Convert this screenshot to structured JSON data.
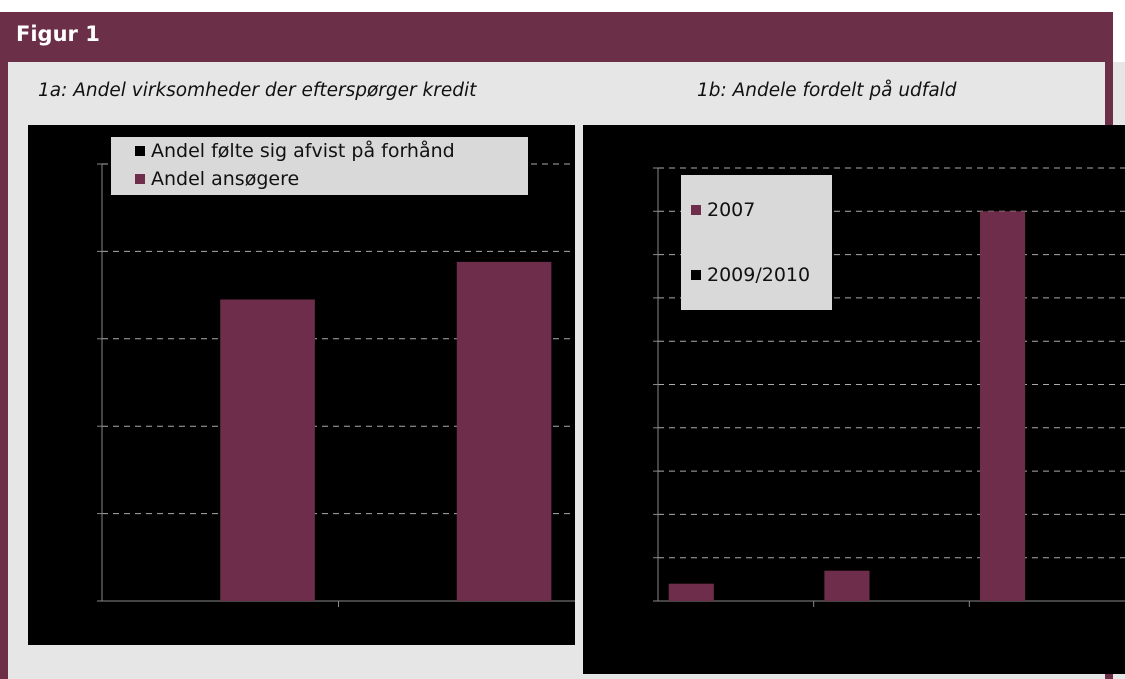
{
  "figure_title": "Figur 1",
  "colors": {
    "frame": "#6b2f48",
    "bar": "#6e2d4b",
    "plot_bg": "#000000",
    "panel": "#e6e6e6",
    "legend_bg": "#d9d9d9"
  },
  "chart_data": [
    {
      "type": "bar",
      "title": "1a: Andel virksomheder der efterspørger kredit",
      "categories": [
        "",
        ""
      ],
      "series": [
        {
          "name": "Andel følte sig afvist på forhånd",
          "color": "#000000",
          "values": [
            0,
            0
          ]
        },
        {
          "name": "Andel ansøgere",
          "color": "#6e2d4b",
          "values": [
            34.5,
            38.8
          ]
        }
      ],
      "ylim": [
        0,
        50
      ],
      "yticks": [
        0,
        10,
        20,
        30,
        40,
        50
      ],
      "grid": true,
      "legend": "top"
    },
    {
      "type": "bar",
      "title": "1b: Andele fordelt på udfald",
      "categories": [
        "",
        "",
        ""
      ],
      "series": [
        {
          "name": "2007",
          "color": "#6e2d4b",
          "values": [
            4,
            7,
            90
          ]
        },
        {
          "name": "2009/2010",
          "color": "#000000",
          "values": [
            0,
            0,
            0
          ]
        }
      ],
      "ylim": [
        0,
        100
      ],
      "yticks": [
        0,
        10,
        20,
        30,
        40,
        50,
        60,
        70,
        80,
        90,
        100
      ],
      "grid": true,
      "legend": "top-left"
    }
  ]
}
